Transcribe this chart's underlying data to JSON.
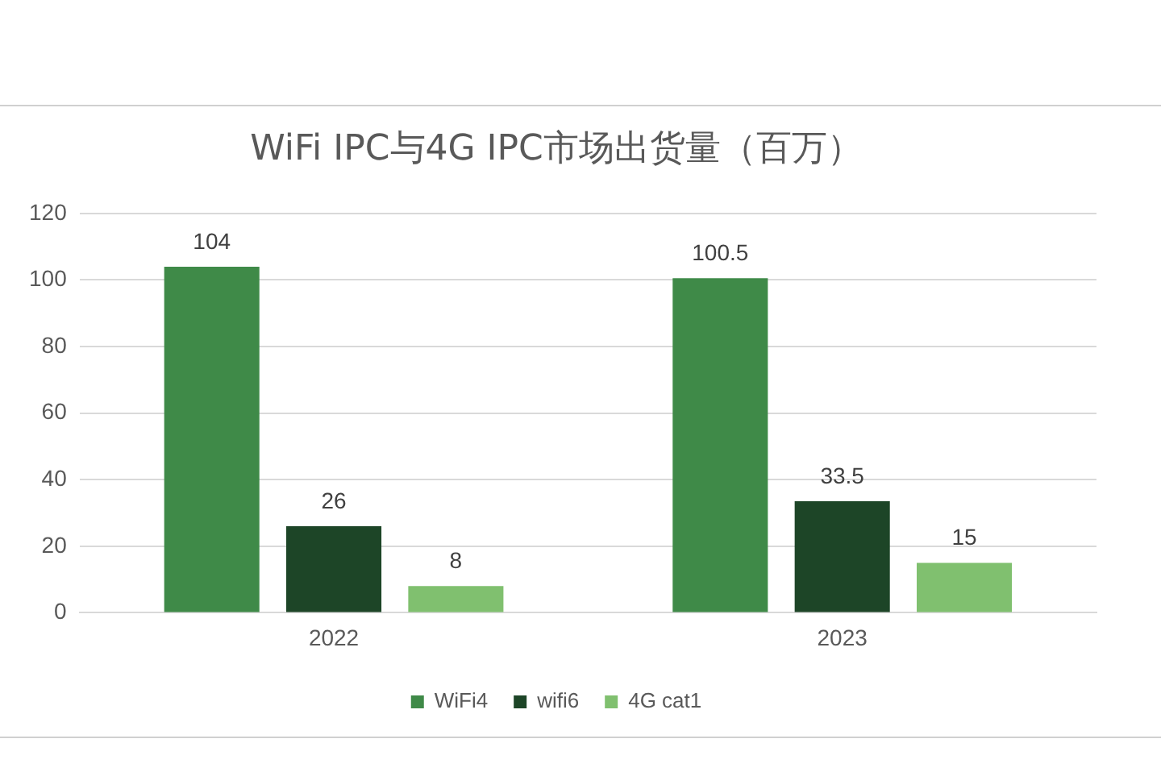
{
  "chart_data": {
    "type": "bar",
    "title": "WiFi IPC与4G IPC市场出货量（百万）",
    "categories": [
      "2022",
      "2023"
    ],
    "series": [
      {
        "name": "WiFi4",
        "color": "#3f8a48",
        "values": [
          104,
          100.5
        ]
      },
      {
        "name": "wifi6",
        "color": "#1d4527",
        "values": [
          26,
          33.5
        ]
      },
      {
        "name": "4G cat1",
        "color": "#80c06f",
        "values": [
          8,
          15
        ]
      }
    ],
    "ylim": [
      0,
      120
    ],
    "yticks": [
      0,
      20,
      40,
      60,
      80,
      100,
      120
    ],
    "grid": "y",
    "legend": "bottom",
    "data_labels": true
  }
}
